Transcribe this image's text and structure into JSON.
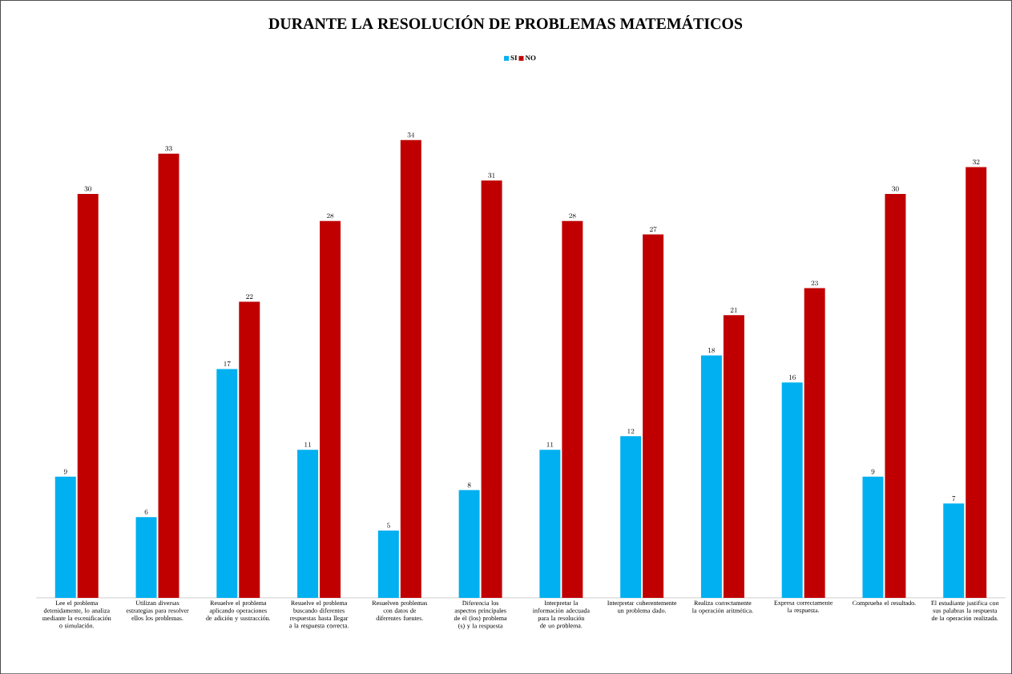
{
  "chart_data": {
    "type": "bar",
    "title": "DURANTE LA RESOLUCIÓN DE PROBLEMAS MATEMÁTICOS",
    "categories": [
      "Lee el problema detenidamente, lo analiza mediante la escenificación o simulación.",
      "Utilizan diversas estrategias para resolver ellos los problemas.",
      "Resuelve el problema aplicando operaciones de adición y sustracción.",
      "Resuelve el problema buscando diferentes respuestas hasta llegar a la respuesta correcta.",
      "Resuelven problemas con datos de diferentes fuentes.",
      "Diferencia los aspectos principales de él (los) problema (s) y la respuesta",
      "Interpretar la información adecuada para la resolución de un problema.",
      "Interpretar coherentemente un problema dado.",
      "Realiza correctamente la operación aritmética.",
      "Expresa correctamente la respuesta.",
      "Comprueba el resultado.",
      "El estudiante justifica con sus palabras la respuesta de la operación realizada."
    ],
    "series": [
      {
        "name": "SI",
        "color": "#00b0f0",
        "values": [
          9,
          6,
          17,
          11,
          5,
          8,
          11,
          12,
          18,
          16,
          9,
          7
        ]
      },
      {
        "name": "NO",
        "color": "#c00000",
        "values": [
          30,
          33,
          22,
          28,
          34,
          31,
          28,
          27,
          21,
          23,
          30,
          32
        ]
      }
    ],
    "data_labels": true,
    "legend": "top"
  }
}
